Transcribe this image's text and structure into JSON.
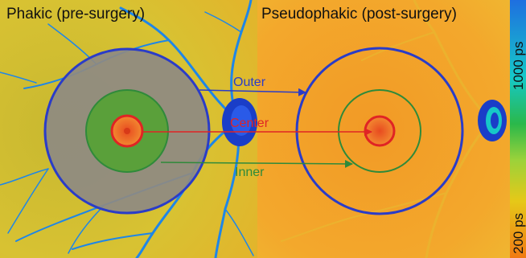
{
  "panels": {
    "left": {
      "title": "Phakic (pre-surgery)"
    },
    "right": {
      "title": "Pseudophakic (post-surgery)"
    }
  },
  "regions": {
    "outer": {
      "label": "Outer",
      "color": "#2a3cc8"
    },
    "center": {
      "label": "Center",
      "color": "#e02424"
    },
    "inner": {
      "label": "Inner",
      "color": "#2f8a3a"
    }
  },
  "colorbar": {
    "top_label": "1000 ps",
    "bottom_label": "200 ps",
    "colors": [
      "#1e6fe0",
      "#16c8c8",
      "#2ab84a",
      "#9bd23a",
      "#e6c818",
      "#f0a020",
      "#f07a14"
    ]
  },
  "colors": {
    "left_fundus": "#d8c030",
    "right_fundus": "#f2a428",
    "vessel": "#1e86e8",
    "optic_disc": "#1a3ec8"
  }
}
